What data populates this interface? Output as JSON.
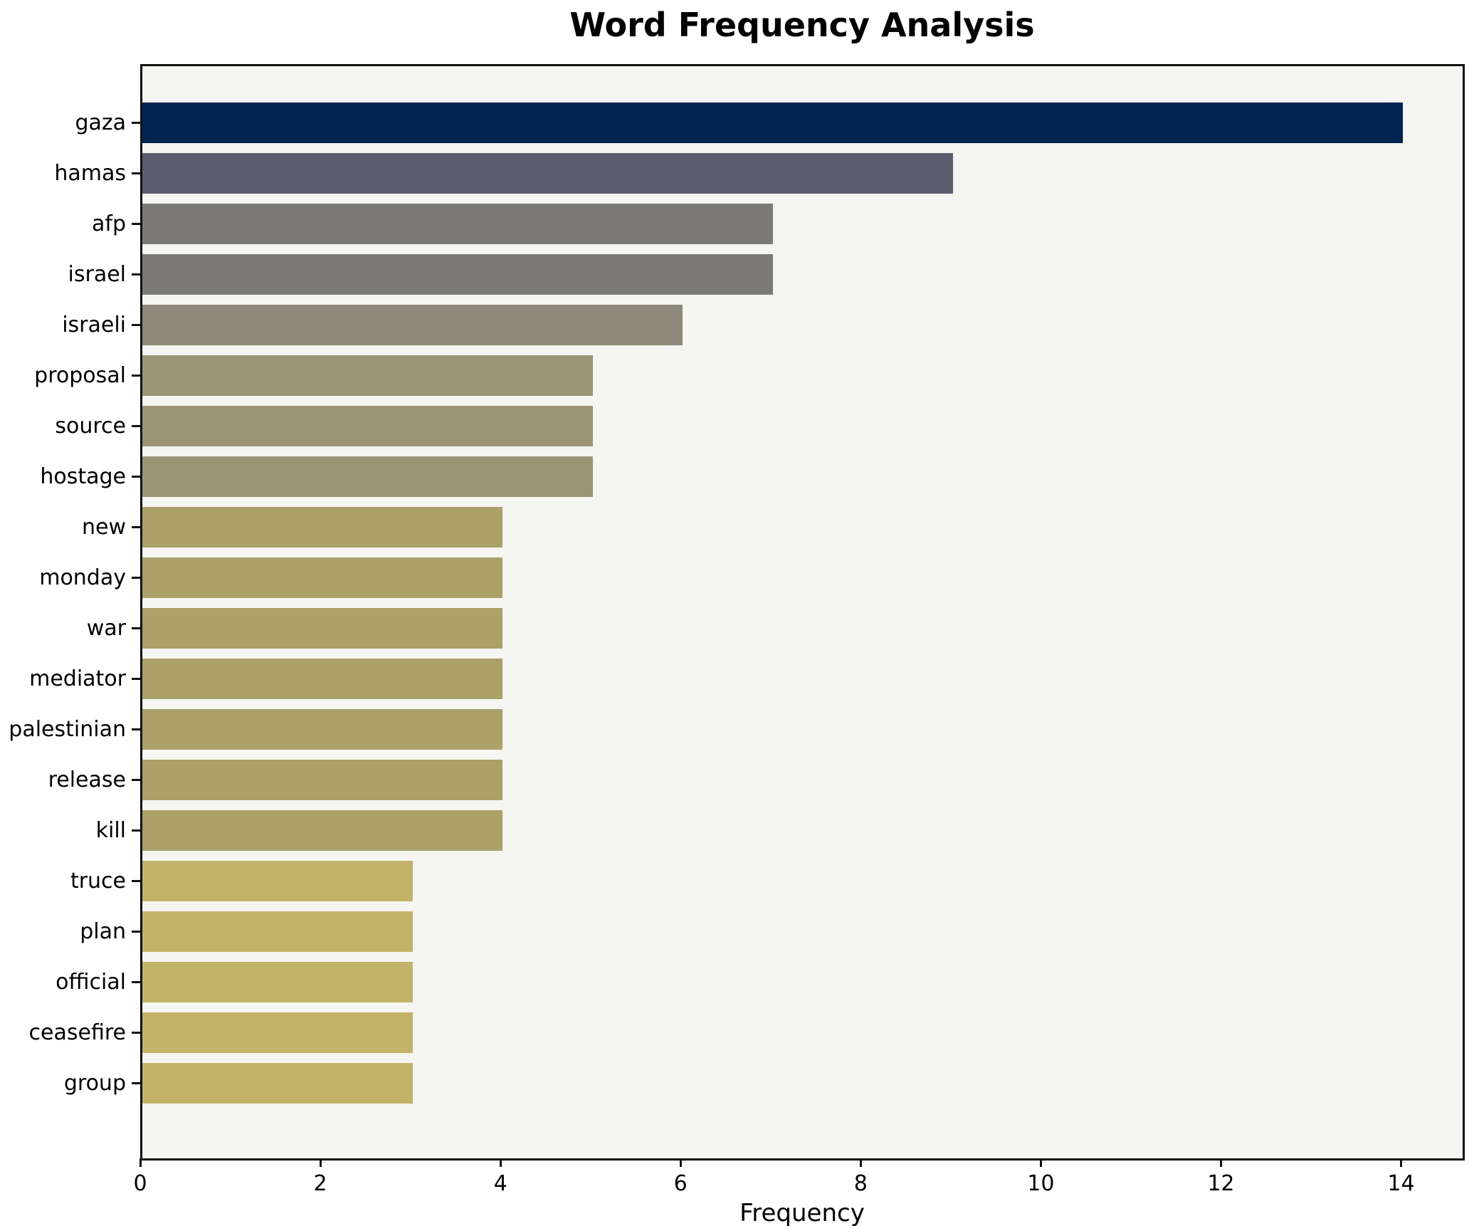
{
  "title": "Word Frequency Analysis",
  "xlabel": "Frequency",
  "chart_data": {
    "type": "bar",
    "orientation": "horizontal",
    "title": "Word Frequency Analysis",
    "xlabel": "Frequency",
    "ylabel": "",
    "categories": [
      "gaza",
      "hamas",
      "afp",
      "israel",
      "israeli",
      "proposal",
      "source",
      "hostage",
      "new",
      "monday",
      "war",
      "mediator",
      "palestinian",
      "release",
      "kill",
      "truce",
      "plan",
      "official",
      "ceasefire",
      "group"
    ],
    "values": [
      14,
      9,
      7,
      7,
      6,
      5,
      5,
      5,
      4,
      4,
      4,
      4,
      4,
      4,
      4,
      3,
      3,
      3,
      3,
      3
    ],
    "bar_colors": [
      "#00234f",
      "#5a5e6c",
      "#7b7a74",
      "#7b7a74",
      "#8d8879",
      "#9c9574",
      "#9c9574",
      "#9c9574",
      "#aba169",
      "#aba169",
      "#aba169",
      "#aba169",
      "#aba169",
      "#aba169",
      "#aba169",
      "#c3b368",
      "#c3b368",
      "#c3b368",
      "#c3b368",
      "#c3b368"
    ],
    "xlim": [
      0,
      14.66
    ],
    "xticks": [
      0,
      2,
      4,
      6,
      8,
      10,
      12,
      14
    ],
    "grid": false,
    "legend": "none",
    "plot_background": "#f5f5f2",
    "figure_background": "#ffffff",
    "spine_color": "#111111"
  }
}
